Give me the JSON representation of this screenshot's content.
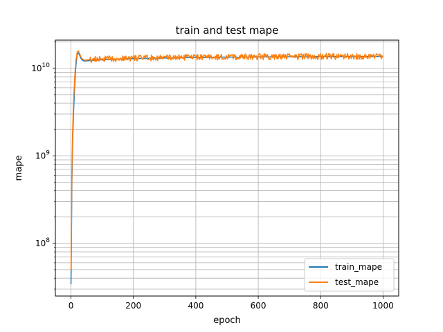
{
  "chart_data": {
    "type": "line",
    "title": "train and test mape",
    "xlabel": "epoch",
    "ylabel": "mape",
    "xlim": [
      -50,
      1050
    ],
    "ylim": [
      25000000,
      21000000000
    ],
    "yscale": "log",
    "grid": true,
    "grid_minor_y": true,
    "legend_position": "lower-right",
    "x_ticks": [
      {
        "value": 0,
        "label": "0"
      },
      {
        "value": 200,
        "label": "200"
      },
      {
        "value": 400,
        "label": "400"
      },
      {
        "value": 600,
        "label": "600"
      },
      {
        "value": 800,
        "label": "800"
      },
      {
        "value": 1000,
        "label": "1000"
      }
    ],
    "y_ticks": [
      {
        "value": 100000000,
        "base": "10",
        "exp": "8"
      },
      {
        "value": 1000000000,
        "base": "10",
        "exp": "9"
      },
      {
        "value": 10000000000,
        "base": "10",
        "exp": "10"
      }
    ],
    "series": [
      {
        "name": "train_mape",
        "color": "#1f77b4",
        "x": [
          0,
          1,
          2,
          3,
          5,
          8,
          12,
          16,
          20,
          24,
          28,
          32,
          36,
          40,
          45,
          50,
          60,
          80,
          100,
          150,
          200,
          250,
          300,
          350,
          400,
          450,
          500,
          550,
          600,
          650,
          700,
          750,
          800,
          850,
          900,
          950,
          1000
        ],
        "y": [
          34000000,
          70000000,
          200000000,
          500000000,
          1300000000,
          3000000000,
          6500000000,
          11000000000,
          14500000000,
          15000000000,
          14000000000,
          13000000000,
          12400000000,
          12200000000,
          12100000000,
          12150000000,
          12250000000,
          12400000000,
          12500000000,
          12700000000,
          12900000000,
          13000000000,
          13100000000,
          13200000000,
          13300000000,
          13350000000,
          13400000000,
          13450000000,
          13500000000,
          13520000000,
          13550000000,
          13570000000,
          13600000000,
          13620000000,
          13650000000,
          13680000000,
          13700000000
        ]
      },
      {
        "name": "test_mape",
        "color": "#ff7f0e",
        "x": [
          0,
          1,
          2,
          3,
          5,
          8,
          12,
          16,
          20,
          24,
          28,
          32,
          36,
          40,
          45,
          50,
          60,
          80,
          100,
          150,
          200,
          250,
          300,
          350,
          400,
          450,
          500,
          550,
          600,
          650,
          700,
          750,
          800,
          850,
          900,
          950,
          1000
        ],
        "y": [
          50000000,
          100000000,
          300000000,
          700000000,
          1800000000,
          4000000000,
          8000000000,
          12500000000,
          15500000000,
          15800000000,
          14600000000,
          13500000000,
          12800000000,
          12500000000,
          12400000000,
          12450000000,
          12550000000,
          12700000000,
          12800000000,
          13000000000,
          13100000000,
          13200000000,
          13300000000,
          13350000000,
          13400000000,
          13450000000,
          13500000000,
          13550000000,
          13600000000,
          13620000000,
          13650000000,
          13670000000,
          13700000000,
          13700000000,
          13720000000,
          13740000000,
          13750000000
        ]
      }
    ]
  }
}
